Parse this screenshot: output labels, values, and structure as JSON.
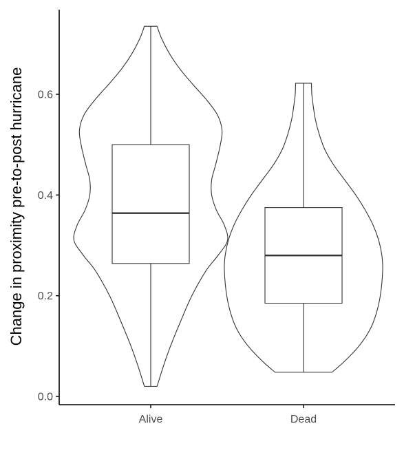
{
  "chart_data": {
    "type": "violin-box",
    "categories": [
      "Alive",
      "Dead"
    ],
    "ylabel": "Change in proximity pre-to-post hurricane",
    "xlabel": "",
    "ylim": [
      -0.015,
      0.77
    ],
    "yticks": [
      0.0,
      0.2,
      0.4,
      0.6
    ],
    "ytick_labels": [
      "0.0",
      "0.2",
      "0.4",
      "0.6"
    ],
    "grid": false,
    "legend": "none",
    "line_color": "#333333",
    "axis_color": "#000000",
    "groups": [
      {
        "name": "Alive",
        "min": 0.02,
        "q1": 0.264,
        "median": 0.364,
        "q3": 0.5,
        "max": 0.735,
        "density": [
          [
            0.02,
            0.08
          ],
          [
            0.06,
            0.16
          ],
          [
            0.1,
            0.25
          ],
          [
            0.15,
            0.38
          ],
          [
            0.2,
            0.52
          ],
          [
            0.25,
            0.7
          ],
          [
            0.28,
            0.85
          ],
          [
            0.31,
            0.97
          ],
          [
            0.34,
            0.93
          ],
          [
            0.37,
            0.83
          ],
          [
            0.4,
            0.77
          ],
          [
            0.43,
            0.77
          ],
          [
            0.46,
            0.82
          ],
          [
            0.5,
            0.88
          ],
          [
            0.53,
            0.9
          ],
          [
            0.56,
            0.84
          ],
          [
            0.59,
            0.7
          ],
          [
            0.62,
            0.53
          ],
          [
            0.65,
            0.37
          ],
          [
            0.68,
            0.24
          ],
          [
            0.71,
            0.14
          ],
          [
            0.735,
            0.08
          ]
        ]
      },
      {
        "name": "Dead",
        "min": 0.048,
        "q1": 0.185,
        "median": 0.28,
        "q3": 0.375,
        "max": 0.622,
        "density": [
          [
            0.048,
            0.36
          ],
          [
            0.07,
            0.52
          ],
          [
            0.1,
            0.7
          ],
          [
            0.13,
            0.83
          ],
          [
            0.16,
            0.91
          ],
          [
            0.2,
            0.97
          ],
          [
            0.25,
            1.0
          ],
          [
            0.28,
            0.99
          ],
          [
            0.31,
            0.95
          ],
          [
            0.34,
            0.88
          ],
          [
            0.37,
            0.78
          ],
          [
            0.4,
            0.66
          ],
          [
            0.43,
            0.52
          ],
          [
            0.46,
            0.38
          ],
          [
            0.49,
            0.27
          ],
          [
            0.52,
            0.2
          ],
          [
            0.55,
            0.15
          ],
          [
            0.58,
            0.12
          ],
          [
            0.6,
            0.105
          ],
          [
            0.622,
            0.1
          ]
        ]
      }
    ]
  }
}
